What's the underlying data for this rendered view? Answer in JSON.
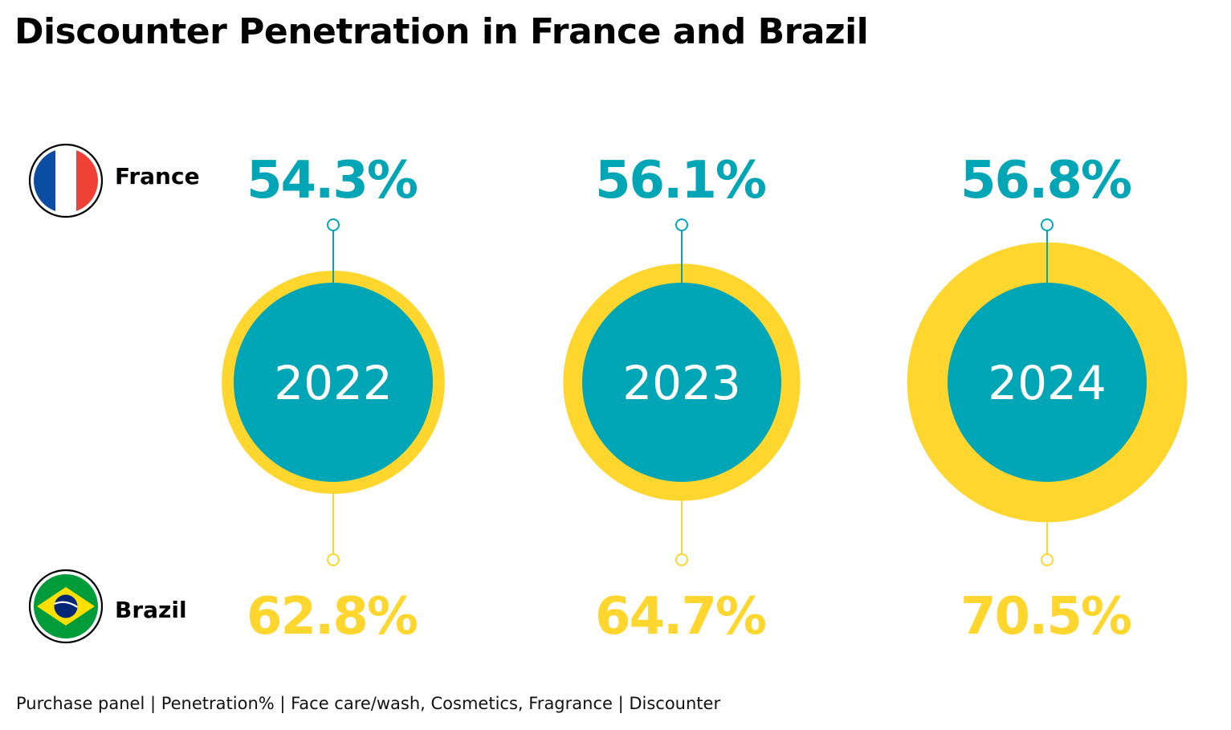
{
  "title": "Discounter Penetration in France and Brazil",
  "footer": "Purchase panel | Penetration% | Face care/wash, Cosmetics, Fragrance | Discounter",
  "colors": {
    "france": "#00A6B5",
    "brazil": "#FFD62E",
    "year_text": "#ffffff",
    "flag_blue": "#0B4DA2",
    "flag_red": "#EF4135",
    "flag_green": "#009B3A",
    "flag_yellow": "#FEDF00",
    "flag_navy": "#002776"
  },
  "countries": [
    {
      "name": "France",
      "icon": "france-flag-icon"
    },
    {
      "name": "Brazil",
      "icon": "brazil-flag-icon"
    }
  ],
  "chart_data": {
    "type": "bubble",
    "categories": [
      "2022",
      "2023",
      "2024"
    ],
    "series": [
      {
        "name": "France",
        "values": [
          54.3,
          56.1,
          56.8
        ],
        "labels": [
          "54.3%",
          "56.1%",
          "56.8%"
        ]
      },
      {
        "name": "Brazil",
        "values": [
          62.8,
          64.7,
          70.5
        ],
        "labels": [
          "62.8%",
          "64.7%",
          "70.5%"
        ]
      }
    ]
  }
}
